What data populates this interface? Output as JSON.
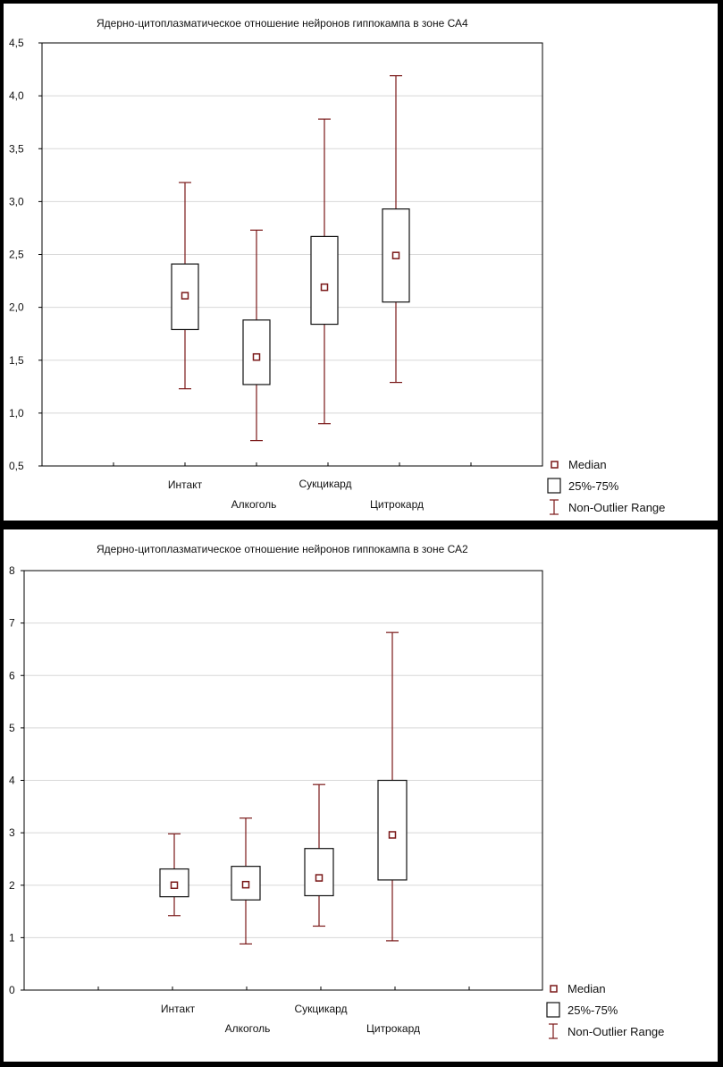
{
  "chart_data": [
    {
      "type": "boxplot",
      "title": "Ядерно-цитоплазматическое отношение нейронов гиппокампа в зоне СА4",
      "categories": [
        "Интакт",
        "Алкоголь",
        "Сукцикард",
        "Цитрокард"
      ],
      "yticks": [
        "0,5",
        "1,0",
        "1,5",
        "2,0",
        "2,5",
        "3,0",
        "3,5",
        "4,0",
        "4,5"
      ],
      "ylim": [
        0.5,
        4.5
      ],
      "grid": true,
      "boxes": [
        {
          "min": 1.23,
          "q1": 1.79,
          "median": 2.11,
          "q3": 2.41,
          "max": 3.18
        },
        {
          "min": 0.74,
          "q1": 1.27,
          "median": 1.53,
          "q3": 1.88,
          "max": 2.73
        },
        {
          "min": 0.9,
          "q1": 1.84,
          "median": 2.19,
          "q3": 2.67,
          "max": 3.78
        },
        {
          "min": 1.29,
          "q1": 2.05,
          "median": 2.49,
          "q3": 2.93,
          "max": 4.19
        }
      ],
      "legend": {
        "median": "Median",
        "box": "25%-75%",
        "range": "Non-Outlier Range"
      }
    },
    {
      "type": "boxplot",
      "title": "Ядерно-цитоплазматическое отношение нейронов гиппокампа в зоне СА2",
      "categories": [
        "Интакт",
        "Алкоголь",
        "Сукцикард",
        "Цитрокард"
      ],
      "yticks": [
        "0",
        "1",
        "2",
        "3",
        "4",
        "5",
        "6",
        "7",
        "8"
      ],
      "ylim": [
        0,
        8
      ],
      "grid": true,
      "boxes": [
        {
          "min": 1.42,
          "q1": 1.78,
          "median": 2.0,
          "q3": 2.31,
          "max": 2.98
        },
        {
          "min": 0.88,
          "q1": 1.72,
          "median": 2.01,
          "q3": 2.36,
          "max": 3.28
        },
        {
          "min": 1.22,
          "q1": 1.8,
          "median": 2.14,
          "q3": 2.7,
          "max": 3.92
        },
        {
          "min": 0.94,
          "q1": 2.1,
          "median": 2.96,
          "q3": 4.0,
          "max": 6.82
        }
      ],
      "legend": {
        "median": "Median",
        "box": "25%-75%",
        "range": "Non-Outlier Range"
      }
    }
  ],
  "colors": {
    "series": "#7a1818",
    "grid": "#d8d8d8",
    "frame": "#000000"
  }
}
